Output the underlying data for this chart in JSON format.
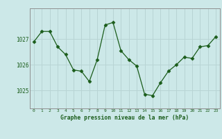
{
  "x": [
    0,
    1,
    2,
    3,
    4,
    5,
    6,
    7,
    8,
    9,
    10,
    11,
    12,
    13,
    14,
    15,
    16,
    17,
    18,
    19,
    20,
    21,
    22,
    23
  ],
  "y": [
    1026.9,
    1027.3,
    1027.3,
    1026.7,
    1026.4,
    1025.8,
    1025.75,
    1025.35,
    1026.2,
    1027.55,
    1027.65,
    1026.55,
    1026.2,
    1025.95,
    1024.85,
    1024.8,
    1025.3,
    1025.75,
    1026.0,
    1026.3,
    1026.25,
    1026.7,
    1026.75,
    1027.1
  ],
  "line_color": "#1a5c1a",
  "marker": "D",
  "marker_size": 2.5,
  "bg_color": "#cce8e8",
  "grid_color": "#b8d4d4",
  "axis_label_color": "#1a5c1a",
  "tick_label_color": "#1a5c1a",
  "border_color": "#909090",
  "ylabel_ticks": [
    1025,
    1026,
    1027
  ],
  "xlabel": "Graphe pression niveau de la mer (hPa)",
  "xlim": [
    -0.5,
    23.5
  ],
  "ylim": [
    1024.3,
    1028.2
  ]
}
